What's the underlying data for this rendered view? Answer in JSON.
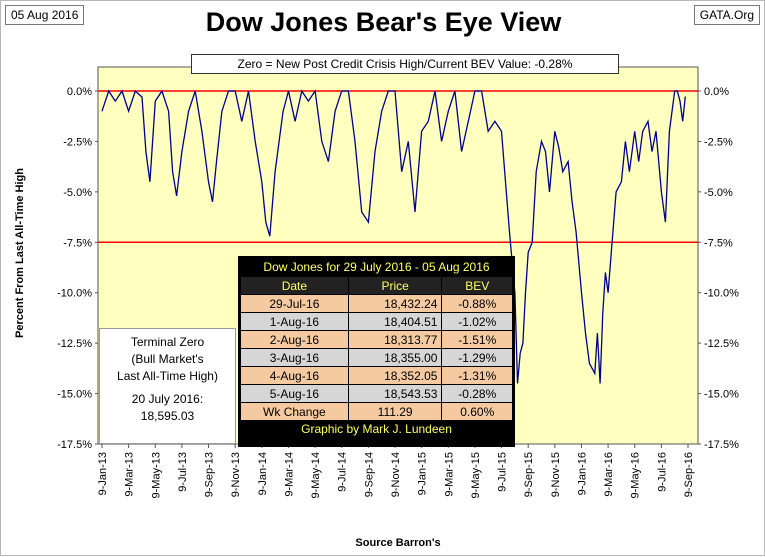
{
  "header": {
    "date_tag": "05 Aug 2016",
    "title": "Dow Jones Bear's Eye View",
    "source_tag": "GATA.Org"
  },
  "subtitle_box": "Zero = New Post Credit Crisis High/Current BEV Value:  -0.28%",
  "terminal_box": {
    "line1": "Terminal Zero",
    "line2": "(Bull Market's",
    "line3": "Last All-Time High)",
    "line4": "20 July 2016:",
    "line5": "18,595.03"
  },
  "table": {
    "title": "Dow Jones for 29 July 2016 - 05 Aug 2016",
    "headers": [
      "Date",
      "Price",
      "BEV"
    ],
    "rows": [
      [
        "29-Jul-16",
        "18,432.24",
        "-0.88%"
      ],
      [
        "1-Aug-16",
        "18,404.51",
        "-1.02%"
      ],
      [
        "2-Aug-16",
        "18,313.77",
        "-1.51%"
      ],
      [
        "3-Aug-16",
        "18,355.00",
        "-1.29%"
      ],
      [
        "4-Aug-16",
        "18,352.05",
        "-1.31%"
      ],
      [
        "5-Aug-16",
        "18,543.53",
        "-0.28%"
      ]
    ],
    "change_row": [
      "Wk Change",
      "111.29",
      "0.60%"
    ],
    "footer": "Graphic by Mark J. Lundeen"
  },
  "chart_data": {
    "type": "line",
    "title": "Dow Jones Bear's Eye View",
    "xlabel": "Source Barron's",
    "ylabel": "Percent From Last All-Time High",
    "ylim": [
      -17.5,
      0
    ],
    "ytick_labels": [
      "0.0%",
      "-2.5%",
      "-5.0%",
      "-7.5%",
      "-10.0%",
      "-12.5%",
      "-15.0%",
      "-17.5%"
    ],
    "ytick_values": [
      0,
      -2.5,
      -5,
      -7.5,
      -10,
      -12.5,
      -15,
      -17.5
    ],
    "xtick_labels": [
      "9-Jan-13",
      "9-Mar-13",
      "9-May-13",
      "9-Jul-13",
      "9-Sep-13",
      "9-Nov-13",
      "9-Jan-14",
      "9-Mar-14",
      "9-May-14",
      "9-Jul-14",
      "9-Sep-14",
      "9-Nov-14",
      "9-Jan-15",
      "9-Mar-15",
      "9-May-15",
      "9-Jul-15",
      "9-Sep-15",
      "9-Nov-15",
      "9-Jan-16",
      "9-Mar-16",
      "9-May-16",
      "9-Jul-16",
      "9-Sep-16"
    ],
    "reference_lines": [
      {
        "y": 0,
        "color": "#ff0000"
      },
      {
        "y": -7.5,
        "color": "#ff0000"
      }
    ],
    "plot_background": "#ffffc0",
    "line_color": "#00008b",
    "grid": false,
    "series": [
      {
        "x_month_index": [
          0,
          0.5,
          1,
          1.5,
          2,
          2.5,
          3,
          3.3,
          3.6,
          4,
          4.5,
          5,
          5.3,
          5.6,
          6,
          6.5,
          7,
          7.5,
          8,
          8.3,
          8.6,
          9,
          9.5,
          10,
          10.5,
          11,
          11.5,
          12,
          12.3,
          12.6,
          13,
          13.3,
          13.6,
          14,
          14.5,
          15,
          15.5,
          16,
          16.5,
          17,
          17.5,
          18,
          18.5,
          19,
          19.5,
          20,
          20.5,
          21,
          21.5,
          22,
          22.5,
          23,
          23.5,
          24,
          24.5,
          25,
          25.5,
          26,
          26.5,
          27,
          27.5,
          28,
          28.5,
          29,
          29.5,
          30,
          30.3,
          30.6,
          31,
          31.2,
          31.4,
          31.6,
          31.8,
          32,
          32.3,
          32.6,
          33,
          33.3,
          33.6,
          34,
          34.3,
          34.6,
          35,
          35.3,
          35.6,
          36,
          36.3,
          36.6,
          37,
          37.2,
          37.4,
          37.6,
          37.8,
          38,
          38.3,
          38.6,
          39,
          39.3,
          39.6,
          40,
          40.3,
          40.6,
          41,
          41.3,
          41.6,
          42,
          42.3,
          42.6,
          43,
          43.2,
          43.4,
          43.6,
          43.8,
          44
        ],
        "bev_percent": [
          -1.0,
          0,
          -0.5,
          0,
          -1.0,
          0,
          -0.3,
          -3.0,
          -4.5,
          -0.5,
          0,
          -1.0,
          -4.0,
          -5.2,
          -3.0,
          -1.0,
          0,
          -2.0,
          -4.5,
          -5.5,
          -3.5,
          -1.0,
          0,
          0,
          -1.5,
          0,
          -2.5,
          -4.5,
          -6.5,
          -7.2,
          -4.0,
          -2.5,
          -1.0,
          0,
          -1.5,
          0,
          -0.5,
          0,
          -2.5,
          -3.5,
          -1.0,
          0,
          0,
          -2.5,
          -6.0,
          -6.5,
          -3.0,
          -1.0,
          0,
          0,
          -4.0,
          -2.5,
          -6.0,
          -2.0,
          -1.5,
          0,
          -2.5,
          -1.0,
          0,
          -3.0,
          -1.5,
          0,
          0,
          -2.0,
          -1.5,
          -2.0,
          -4.5,
          -7.0,
          -10.0,
          -14.5,
          -13.0,
          -12.5,
          -10.0,
          -8.0,
          -7.5,
          -4.0,
          -2.5,
          -3.0,
          -5.0,
          -2.0,
          -2.8,
          -4.0,
          -3.5,
          -5.5,
          -7.0,
          -10.0,
          -12.0,
          -13.5,
          -14.0,
          -12.0,
          -14.5,
          -11.0,
          -9.0,
          -10.0,
          -7.5,
          -5.0,
          -4.5,
          -2.5,
          -4.0,
          -2.0,
          -3.5,
          -2.0,
          -1.5,
          -3.0,
          -2.0,
          -5.0,
          -6.5,
          -2.0,
          0,
          0,
          -0.5,
          -1.5,
          -0.28
        ]
      }
    ]
  }
}
